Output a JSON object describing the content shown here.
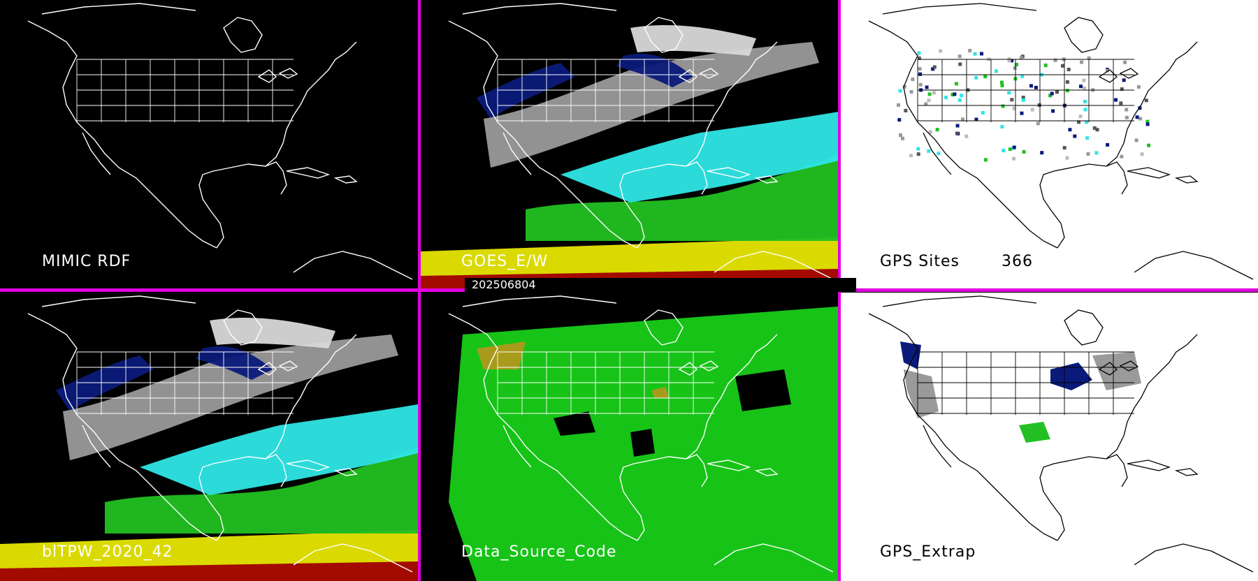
{
  "timestamp": "202506804",
  "panels": [
    {
      "label": "MIMIC RDF",
      "background": "#000000",
      "label_color": "#ffffff",
      "line_color": "#ffffff"
    },
    {
      "label": "GOES_E/W",
      "background": "#000000",
      "label_color": "#ffffff",
      "line_color": "#ffffff"
    },
    {
      "label": "GPS Sites",
      "count": "366",
      "background": "#ffffff",
      "label_color": "#000000",
      "line_color": "#000000"
    },
    {
      "label": "blTPW_2020_42",
      "background": "#000000",
      "label_color": "#ffffff",
      "line_color": "#ffffff"
    },
    {
      "label": "Data_Source_Code",
      "background": "#000000",
      "label_color": "#ffffff",
      "line_color": "#ffffff"
    },
    {
      "label": "GPS_Extrap",
      "background": "#ffffff",
      "label_color": "#000000",
      "line_color": "#000000"
    }
  ],
  "colors": {
    "divider": "#e000e0",
    "tpw_dark_blue": "#0a1a7a",
    "tpw_gray": "#9a9a9a",
    "tpw_light_gray": "#d8d8d8",
    "tpw_cyan": "#2ee6e6",
    "tpw_green": "#22c022",
    "tpw_yellow": "#e6e600",
    "tpw_red": "#a00000",
    "source_green": "#16c316",
    "source_olive": "#a89a1a"
  }
}
